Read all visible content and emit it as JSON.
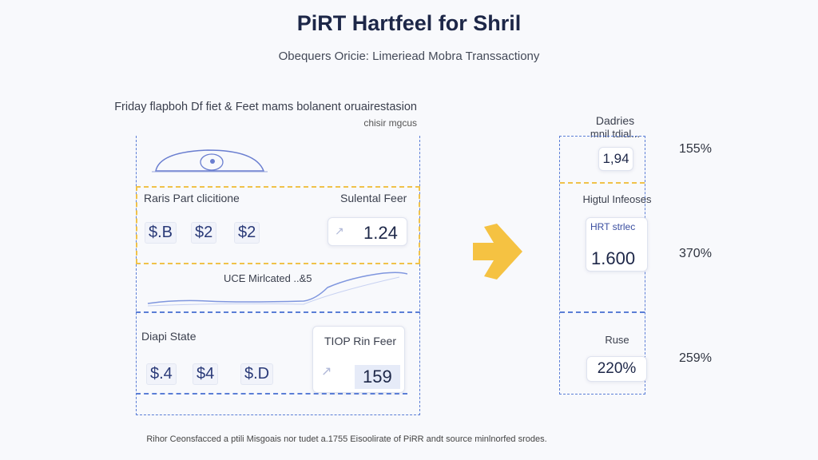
{
  "header": {
    "title": "PiRT Hartfeel for Shril",
    "subtitle": "Obequers Oricie: Limeriead Mobra Transsactiony"
  },
  "intro": {
    "line1": "Friday flapboh Df fiet & Feet mams bolanent oruairestasion",
    "line2": "chisir mgcus"
  },
  "left_panel": {
    "section1": {
      "label": "Raris Part clicitione",
      "values": [
        "$.B",
        "$2",
        "$2"
      ],
      "card_label": "Sulental Feer",
      "card_value": "1.24"
    },
    "chart_label": "UCE Mirlcated ..&5",
    "section2": {
      "label": "Diapi State",
      "values": [
        "$.4",
        "$4",
        "$.D"
      ],
      "card_label": "TIOP Rin Feer",
      "card_value": "159"
    }
  },
  "right_panel": {
    "section1": {
      "label_line1": "Dadries",
      "label_line2": "mnil tdial...",
      "value": "1,94",
      "percent": "155%"
    },
    "section2": {
      "label": "Higtul Infeoses",
      "card_label": "HRT strlec",
      "value": "1.600",
      "percent": "370%"
    },
    "section3": {
      "label": "Ruse",
      "value": "220%",
      "percent": "259%"
    }
  },
  "footer": "Rihor Ceonsfacced a ptili Misgoais nor tudet a.1755 Eisoolirate of PiRR andt source minlnorfed srodes.",
  "colors": {
    "accent": "#f5c242",
    "blue": "#5b7ed6",
    "navy": "#1d2748"
  }
}
